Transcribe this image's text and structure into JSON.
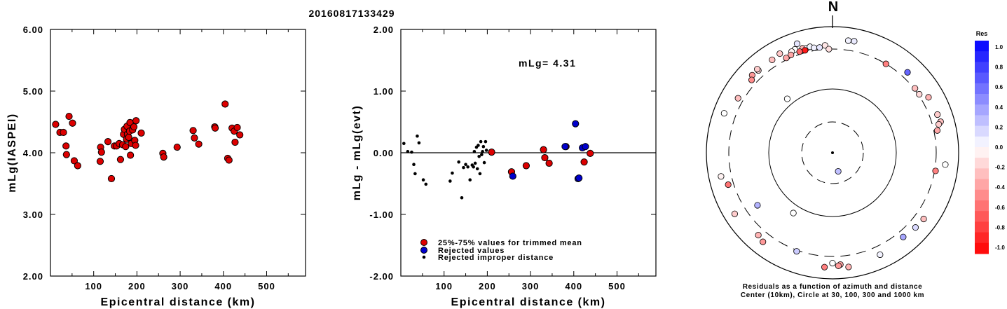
{
  "title": "20160817133429",
  "colors": {
    "trimmed": "#dd0000",
    "rejected": "#0000cc",
    "improper": "#000000"
  },
  "chart_data": [
    {
      "type": "scatter",
      "xlabel": "Epicentral distance (km)",
      "ylabel": "mLg(IASPEI)",
      "xlim": [
        0,
        590
      ],
      "ylim": [
        2.0,
        6.0
      ],
      "x_ticks": [
        100,
        200,
        300,
        400,
        500
      ],
      "y_ticks": [
        "2.00",
        "3.00",
        "4.00",
        "5.00",
        "6.00"
      ],
      "points": [
        [
          12,
          4.46
        ],
        [
          22,
          4.33
        ],
        [
          30,
          4.33
        ],
        [
          36,
          4.11
        ],
        [
          37,
          3.97
        ],
        [
          43,
          4.59
        ],
        [
          51,
          4.48
        ],
        [
          55,
          3.87
        ],
        [
          63,
          3.79
        ],
        [
          115,
          3.86
        ],
        [
          116,
          4.09
        ],
        [
          118,
          4.01
        ],
        [
          133,
          4.18
        ],
        [
          141,
          3.58
        ],
        [
          148,
          4.11
        ],
        [
          153,
          4.11
        ],
        [
          159,
          4.15
        ],
        [
          162,
          3.89
        ],
        [
          167,
          4.13
        ],
        [
          169,
          4.3
        ],
        [
          171,
          4.38
        ],
        [
          174,
          4.1
        ],
        [
          176,
          4.22
        ],
        [
          177,
          4.43
        ],
        [
          178,
          4.3
        ],
        [
          181,
          4.25
        ],
        [
          183,
          4.35
        ],
        [
          184,
          4.49
        ],
        [
          185,
          3.96
        ],
        [
          187,
          4.15
        ],
        [
          190,
          4.37
        ],
        [
          193,
          4.42
        ],
        [
          195,
          4.2
        ],
        [
          197,
          4.12
        ],
        [
          198,
          4.52
        ],
        [
          210,
          4.32
        ],
        [
          260,
          3.99
        ],
        [
          262,
          3.93
        ],
        [
          293,
          4.09
        ],
        [
          330,
          4.36
        ],
        [
          333,
          4.24
        ],
        [
          343,
          4.14
        ],
        [
          380,
          4.42
        ],
        [
          381,
          4.4
        ],
        [
          404,
          4.79
        ],
        [
          410,
          3.91
        ],
        [
          413,
          3.88
        ],
        [
          420,
          4.4
        ],
        [
          425,
          4.35
        ],
        [
          427,
          4.17
        ],
        [
          432,
          4.41
        ],
        [
          438,
          4.29
        ]
      ]
    },
    {
      "type": "scatter",
      "xlabel": "Epicentral distance (km)",
      "ylabel": "mLg - mLg(evt)",
      "xlim": [
        0,
        590
      ],
      "ylim": [
        -2.0,
        2.0
      ],
      "x_ticks": [
        100,
        200,
        300,
        400,
        500
      ],
      "y_ticks": [
        "-2.00",
        "-1.00",
        "0.00",
        "1.00",
        "2.00"
      ],
      "annotation": "mLg= 4.31",
      "zero_line": 0,
      "legend": [
        {
          "label": "25%-75% values for trimmed mean",
          "color": "#dd0000",
          "style": "large"
        },
        {
          "label": "Rejected values",
          "color": "#0000cc",
          "style": "large"
        },
        {
          "label": "Rejected improper distance",
          "color": "#000000",
          "style": "small"
        }
      ],
      "series": [
        {
          "name": "25%-75% values for trimmed mean",
          "points": [
            [
              210,
              0.01
            ],
            [
              256,
              -0.31
            ],
            [
              290,
              -0.21
            ],
            [
              330,
              0.05
            ],
            [
              333,
              -0.08
            ],
            [
              343,
              -0.17
            ],
            [
              424,
              -0.15
            ],
            [
              438,
              -0.01
            ],
            [
              382,
              0.1
            ]
          ]
        },
        {
          "name": "Rejected values",
          "points": [
            [
              259,
              -0.38
            ],
            [
              380,
              0.1
            ],
            [
              404,
              0.47
            ],
            [
              410,
              -0.42
            ],
            [
              412,
              -0.41
            ],
            [
              420,
              0.08
            ],
            [
              427,
              0.1
            ]
          ]
        },
        {
          "name": "Rejected improper distance",
          "points": [
            [
              7,
              0.15
            ],
            [
              16,
              0.02
            ],
            [
              25,
              0.01
            ],
            [
              30,
              -0.19
            ],
            [
              33,
              -0.34
            ],
            [
              38,
              0.27
            ],
            [
              42,
              0.16
            ],
            [
              52,
              -0.44
            ],
            [
              58,
              -0.51
            ],
            [
              114,
              -0.46
            ],
            [
              119,
              -0.33
            ],
            [
              134,
              -0.15
            ],
            [
              141,
              -0.73
            ],
            [
              145,
              -0.24
            ],
            [
              150,
              -0.19
            ],
            [
              155,
              -0.23
            ],
            [
              160,
              -0.44
            ],
            [
              165,
              -0.2
            ],
            [
              168,
              -0.23
            ],
            [
              170,
              0.02
            ],
            [
              172,
              -0.17
            ],
            [
              175,
              0.09
            ],
            [
              177,
              -0.26
            ],
            [
              179,
              0.12
            ],
            [
              181,
              -0.06
            ],
            [
              183,
              -0.34
            ],
            [
              185,
              0.18
            ],
            [
              187,
              -0.03
            ],
            [
              189,
              0.02
            ],
            [
              191,
              0.1
            ],
            [
              193,
              -0.16
            ],
            [
              196,
              0.18
            ],
            [
              198,
              0.04
            ]
          ]
        }
      ]
    },
    {
      "type": "polar-scatter",
      "north_label": "N",
      "caption_line1": "Residuals as a function of azimuth and distance",
      "caption_line2": "Center (10km), Circle at 30, 100, 300 and 1000 km",
      "rings_km": [
        30,
        100,
        300,
        1000
      ],
      "points": [
        {
          "az": 8,
          "dist": 500,
          "res": 0.05
        },
        {
          "az": 11,
          "dist": 510,
          "res": 0.08
        },
        {
          "az": 342,
          "dist": 540,
          "res": 0.1
        },
        {
          "az": 332,
          "dist": 475,
          "res": -0.22
        },
        {
          "az": 340,
          "dist": 420,
          "res": 0.0
        },
        {
          "az": 338,
          "dist": 400,
          "res": -0.05
        },
        {
          "az": 344,
          "dist": 390,
          "res": -0.3
        },
        {
          "az": 346,
          "dist": 370,
          "res": 0.02
        },
        {
          "az": 348,
          "dist": 385,
          "res": 0.04
        },
        {
          "az": 350,
          "dist": 350,
          "res": 0.06
        },
        {
          "az": 353,
          "dist": 340,
          "res": 0.1
        },
        {
          "az": 356,
          "dist": 370,
          "res": -0.1
        },
        {
          "az": 358,
          "dist": 300,
          "res": -0.12
        },
        {
          "az": 345,
          "dist": 340,
          "res": -0.9
        },
        {
          "az": 342,
          "dist": 345,
          "res": -0.6
        },
        {
          "az": 337,
          "dist": 345,
          "res": -0.35
        },
        {
          "az": 327,
          "dist": 440,
          "res": -0.25
        },
        {
          "az": 318,
          "dist": 440,
          "res": -0.15
        },
        {
          "az": 314,
          "dist": 460,
          "res": -0.4
        },
        {
          "az": 318,
          "dist": 480,
          "res": -0.2
        },
        {
          "az": 334,
          "dist": 330,
          "res": -0.35
        },
        {
          "az": 312,
          "dist": 395,
          "res": -0.45
        },
        {
          "az": 300,
          "dist": 400,
          "res": -0.25
        },
        {
          "az": 290,
          "dist": 560,
          "res": 0.0
        },
        {
          "az": 258,
          "dist": 520,
          "res": -0.05
        },
        {
          "az": 253,
          "dist": 400,
          "res": -0.55
        },
        {
          "az": 218,
          "dist": 495,
          "res": -0.4
        },
        {
          "az": 222,
          "dist": 440,
          "res": -0.3
        },
        {
          "az": 238,
          "dist": 560,
          "res": -0.2
        },
        {
          "az": 200,
          "dist": 320,
          "res": 0.2
        },
        {
          "az": 180,
          "dist": 430,
          "res": 0.0
        },
        {
          "az": 176,
          "dist": 470,
          "res": -0.35
        },
        {
          "az": 177,
          "dist": 500,
          "res": -0.4
        },
        {
          "az": 172,
          "dist": 560,
          "res": -0.3
        },
        {
          "az": 184,
          "dist": 540,
          "res": -0.5
        },
        {
          "az": 155,
          "dist": 480,
          "res": 0.05
        },
        {
          "az": 140,
          "dist": 420,
          "res": 0.35
        },
        {
          "az": 132,
          "dist": 460,
          "res": 0.15
        },
        {
          "az": 43,
          "dist": 420,
          "res": 0.6
        },
        {
          "az": 60,
          "dist": 440,
          "res": -0.3
        },
        {
          "az": 70,
          "dist": 460,
          "res": -0.2
        },
        {
          "az": 74,
          "dist": 480,
          "res": -0.25
        },
        {
          "az": 75,
          "dist": 420,
          "res": -0.2
        },
        {
          "az": 96,
          "dist": 505,
          "res": 0.0
        },
        {
          "az": 78,
          "dist": 360,
          "res": -0.35
        },
        {
          "az": 100,
          "dist": 315,
          "res": -0.5
        },
        {
          "az": 52,
          "dist": 315,
          "res": -0.25
        },
        {
          "az": 56,
          "dist": 315,
          "res": -0.15
        },
        {
          "az": 31,
          "dist": 300,
          "res": -0.5
        },
        {
          "az": 126,
          "dist": 485,
          "res": -0.25
        },
        {
          "az": 235,
          "dist": 215,
          "res": 0.3
        },
        {
          "az": 320,
          "dist": 120,
          "res": 0.0
        },
        {
          "az": 213,
          "dist": 125,
          "res": 0.0
        },
        {
          "az": 163,
          "dist": 20,
          "res": 0.25
        }
      ]
    }
  ],
  "colorbar": {
    "title": "Res",
    "labels": [
      "1.0",
      "0.8",
      "0.6",
      "0.4",
      "0.2",
      "0.0",
      "-0.2",
      "-0.4",
      "-0.6",
      "-0.8",
      "-1.0"
    ]
  }
}
